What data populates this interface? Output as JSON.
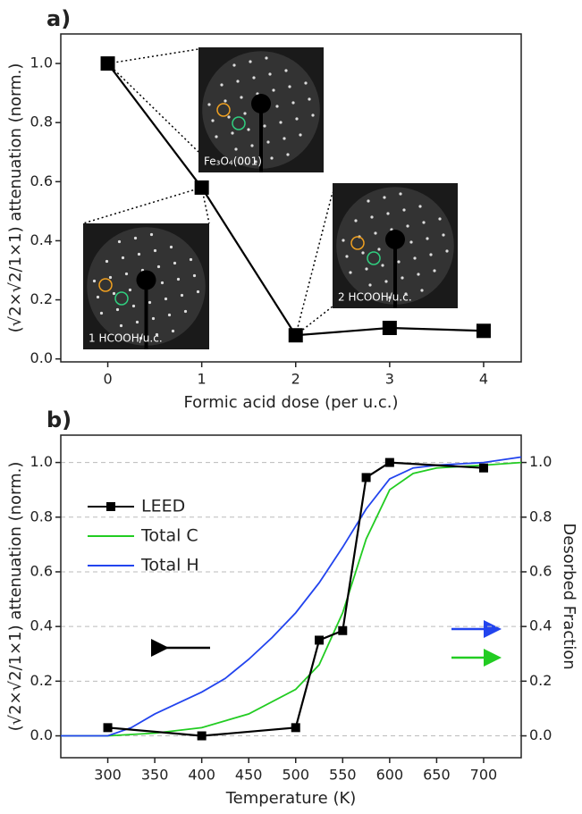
{
  "chart_data": [
    {
      "type": "line",
      "panel_label": "a)",
      "x": [
        0,
        1,
        2,
        3,
        4
      ],
      "values": [
        1.0,
        0.58,
        0.08,
        0.105,
        0.095
      ],
      "color": "#000000",
      "marker": "square",
      "xlabel": "Formic acid dose (per u.c.)",
      "ylabel": "(√2×√2/1×1) attenuation (norm.)",
      "xlim": [
        -0.5,
        4.4
      ],
      "ylim": [
        -0.01,
        1.1
      ],
      "xticks": [
        0,
        1,
        2,
        3,
        4
      ],
      "yticks": [
        {
          "value": 0,
          "label": "0.0"
        },
        {
          "value": 0.2,
          "label": "0.2"
        },
        {
          "value": 0.4,
          "label": "0.4"
        },
        {
          "value": 0.6,
          "label": "0.6"
        },
        {
          "value": 0.8,
          "label": "0.8"
        },
        {
          "value": 1,
          "label": "1.0"
        }
      ],
      "grid": false,
      "annotations": [
        "Fe₃O₄(001)",
        "1 HCOOH/u.c.",
        "2 HCOOH/u.c."
      ]
    },
    {
      "type": "line",
      "panel_label": "b)",
      "xlabel": "Temperature (K)",
      "ylabel": "(√2×√2/1×1) attenuation (norm.)",
      "y2label": "Desorbed Fraction",
      "xlim": [
        250,
        740
      ],
      "ylim": [
        -0.08,
        1.1
      ],
      "y2lim": [
        -0.08,
        1.1
      ],
      "xticks": [
        300,
        350,
        400,
        450,
        500,
        550,
        600,
        650,
        700
      ],
      "yticks": [
        {
          "value": 0,
          "label": "0.0"
        },
        {
          "value": 0.2,
          "label": "0.2"
        },
        {
          "value": 0.4,
          "label": "0.4"
        },
        {
          "value": 0.6,
          "label": "0.6"
        },
        {
          "value": 0.8,
          "label": "0.8"
        },
        {
          "value": 1,
          "label": "1.0"
        }
      ],
      "y2ticks": [
        {
          "value": 0,
          "label": "0.0"
        },
        {
          "value": 0.2,
          "label": "0.2"
        },
        {
          "value": 0.4,
          "label": "0.4"
        },
        {
          "value": 0.6,
          "label": "0.6"
        },
        {
          "value": 0.8,
          "label": "0.8"
        },
        {
          "value": 1,
          "label": "1.0"
        }
      ],
      "grid": true,
      "legend": "upper left",
      "series": [
        {
          "name": "LEED",
          "color": "#000000",
          "marker": "square",
          "x": [
            300,
            400,
            500,
            525,
            550,
            575,
            600,
            700
          ],
          "values": [
            0.03,
            0.0,
            0.03,
            0.35,
            0.385,
            0.945,
            1.0,
            0.98
          ]
        },
        {
          "name": "Total C",
          "color": "#22cc22",
          "axis": "y2",
          "x": [
            250,
            300,
            350,
            400,
            450,
            500,
            525,
            550,
            575,
            600,
            625,
            650,
            700,
            740
          ],
          "values": [
            0,
            0,
            0.01,
            0.03,
            0.08,
            0.17,
            0.26,
            0.45,
            0.72,
            0.9,
            0.96,
            0.98,
            0.99,
            1.0
          ]
        },
        {
          "name": "Total H",
          "color": "#2244ee",
          "axis": "y2",
          "x": [
            250,
            300,
            325,
            350,
            375,
            400,
            425,
            450,
            475,
            500,
            525,
            550,
            575,
            600,
            625,
            650,
            700,
            740
          ],
          "values": [
            0,
            0,
            0.03,
            0.08,
            0.12,
            0.16,
            0.21,
            0.28,
            0.36,
            0.45,
            0.56,
            0.69,
            0.83,
            0.94,
            0.98,
            0.99,
            1.0,
            1.02
          ]
        }
      ]
    }
  ]
}
